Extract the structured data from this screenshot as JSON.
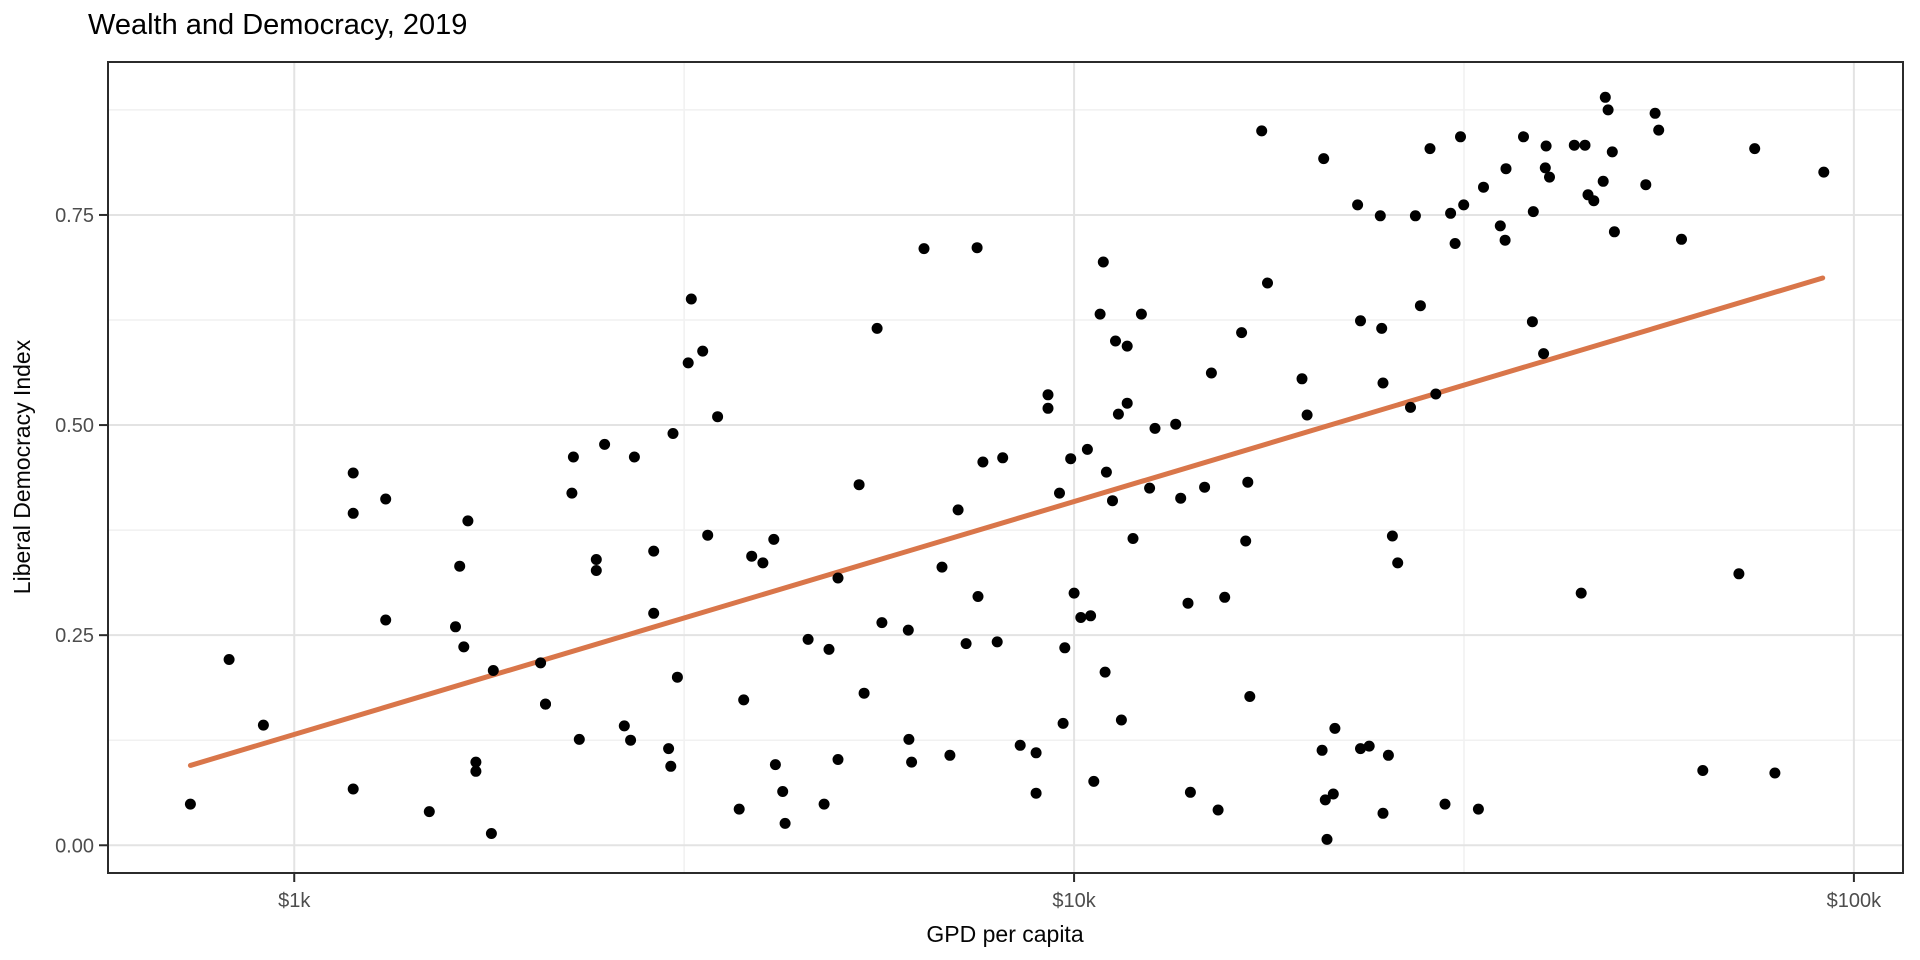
{
  "chart_data": {
    "type": "scatter",
    "title": "Wealth and Democracy, 2019",
    "xlabel": "GPD per capita",
    "ylabel": "Liberal Democracy Index",
    "x_scale": "log10",
    "xlim": [
      577,
      115600
    ],
    "ylim": [
      -0.033,
      0.932
    ],
    "x_breaks": [
      1000,
      10000,
      100000
    ],
    "x_tick_labels": [
      "$1k",
      "$10k",
      "$100k"
    ],
    "x_minor_breaks": [
      3162,
      31623
    ],
    "y_breaks": [
      0,
      0.25,
      0.5,
      0.75
    ],
    "y_tick_labels": [
      "0.00",
      "0.25",
      "0.50",
      "0.75"
    ],
    "y_minor_breaks": [
      0.125,
      0.375,
      0.625,
      0.875
    ],
    "grid": "on",
    "legend_position": "none",
    "point_color": "#000000",
    "trend_color": "#D9764A",
    "grid_major_color": "#e3e3e3",
    "grid_minor_color": "#f1f1f1",
    "panel_border_color": "#2b2b2b",
    "tick_color": "#2b2b2b",
    "trend_line": {
      "x1": 736,
      "y1": 0.095,
      "x2": 91200,
      "y2": 0.675
    },
    "points": [
      [
        48000,
        0.89
      ],
      [
        48400,
        0.875
      ],
      [
        55600,
        0.871
      ],
      [
        56200,
        0.851
      ],
      [
        17400,
        0.85
      ],
      [
        31300,
        0.843
      ],
      [
        37700,
        0.843
      ],
      [
        40300,
        0.832
      ],
      [
        43800,
        0.833
      ],
      [
        45200,
        0.833
      ],
      [
        49000,
        0.825
      ],
      [
        74600,
        0.829
      ],
      [
        28600,
        0.829
      ],
      [
        20900,
        0.817
      ],
      [
        35800,
        0.805
      ],
      [
        40200,
        0.806
      ],
      [
        40700,
        0.795
      ],
      [
        91500,
        0.801
      ],
      [
        33500,
        0.783
      ],
      [
        47700,
        0.79
      ],
      [
        54100,
        0.786
      ],
      [
        45600,
        0.774
      ],
      [
        46400,
        0.767
      ],
      [
        31600,
        0.762
      ],
      [
        23100,
        0.762
      ],
      [
        38800,
        0.754
      ],
      [
        30400,
        0.752
      ],
      [
        24700,
        0.749
      ],
      [
        27400,
        0.749
      ],
      [
        35200,
        0.737
      ],
      [
        35700,
        0.72
      ],
      [
        30800,
        0.716
      ],
      [
        49300,
        0.73
      ],
      [
        60100,
        0.721
      ],
      [
        6420,
        0.71
      ],
      [
        7510,
        0.711
      ],
      [
        10900,
        0.694
      ],
      [
        17700,
        0.669
      ],
      [
        3230,
        0.65
      ],
      [
        10800,
        0.632
      ],
      [
        12200,
        0.632
      ],
      [
        27800,
        0.642
      ],
      [
        23300,
        0.624
      ],
      [
        24800,
        0.615
      ],
      [
        16400,
        0.61
      ],
      [
        5590,
        0.615
      ],
      [
        38700,
        0.623
      ],
      [
        11300,
        0.6
      ],
      [
        11700,
        0.594
      ],
      [
        3340,
        0.588
      ],
      [
        3200,
        0.574
      ],
      [
        15000,
        0.562
      ],
      [
        19600,
        0.555
      ],
      [
        24900,
        0.55
      ],
      [
        40000,
        0.585
      ],
      [
        9260,
        0.536
      ],
      [
        9260,
        0.52
      ],
      [
        11700,
        0.526
      ],
      [
        11400,
        0.513
      ],
      [
        12700,
        0.496
      ],
      [
        13500,
        0.501
      ],
      [
        19900,
        0.512
      ],
      [
        27000,
        0.521
      ],
      [
        29100,
        0.537
      ],
      [
        3490,
        0.51
      ],
      [
        3060,
        0.49
      ],
      [
        2500,
        0.477
      ],
      [
        2280,
        0.462
      ],
      [
        2730,
        0.462
      ],
      [
        2270,
        0.419
      ],
      [
        5300,
        0.429
      ],
      [
        7640,
        0.456
      ],
      [
        8100,
        0.461
      ],
      [
        7100,
        0.399
      ],
      [
        9900,
        0.46
      ],
      [
        10400,
        0.471
      ],
      [
        11000,
        0.444
      ],
      [
        9580,
        0.419
      ],
      [
        12500,
        0.425
      ],
      [
        11200,
        0.41
      ],
      [
        13700,
        0.413
      ],
      [
        14700,
        0.426
      ],
      [
        16700,
        0.432
      ],
      [
        1190,
        0.443
      ],
      [
        1310,
        0.412
      ],
      [
        1190,
        0.395
      ],
      [
        1670,
        0.386
      ],
      [
        1630,
        0.332
      ],
      [
        3390,
        0.369
      ],
      [
        4120,
        0.364
      ],
      [
        3860,
        0.344
      ],
      [
        3990,
        0.336
      ],
      [
        2890,
        0.35
      ],
      [
        2440,
        0.34
      ],
      [
        2440,
        0.327
      ],
      [
        4980,
        0.318
      ],
      [
        6770,
        0.331
      ],
      [
        7530,
        0.296
      ],
      [
        11900,
        0.365
      ],
      [
        16600,
        0.362
      ],
      [
        25600,
        0.368
      ],
      [
        26000,
        0.336
      ],
      [
        10000,
        0.3
      ],
      [
        71200,
        0.323
      ],
      [
        44700,
        0.3
      ],
      [
        14000,
        0.288
      ],
      [
        15600,
        0.295
      ],
      [
        2890,
        0.276
      ],
      [
        1310,
        0.268
      ],
      [
        1610,
        0.26
      ],
      [
        825,
        0.221
      ],
      [
        1650,
        0.236
      ],
      [
        1800,
        0.208
      ],
      [
        2070,
        0.217
      ],
      [
        10200,
        0.271
      ],
      [
        10500,
        0.273
      ],
      [
        9730,
        0.235
      ],
      [
        4560,
        0.245
      ],
      [
        4850,
        0.233
      ],
      [
        5670,
        0.265
      ],
      [
        6130,
        0.256
      ],
      [
        7270,
        0.24
      ],
      [
        7970,
        0.242
      ],
      [
        10960,
        0.206
      ],
      [
        3100,
        0.2
      ],
      [
        3770,
        0.173
      ],
      [
        5380,
        0.181
      ],
      [
        16800,
        0.177
      ],
      [
        2100,
        0.168
      ],
      [
        11500,
        0.149
      ],
      [
        9680,
        0.145
      ],
      [
        913,
        0.143
      ],
      [
        2650,
        0.142
      ],
      [
        2320,
        0.126
      ],
      [
        2700,
        0.125
      ],
      [
        3020,
        0.115
      ],
      [
        8530,
        0.119
      ],
      [
        8940,
        0.11
      ],
      [
        21600,
        0.139
      ],
      [
        20800,
        0.113
      ],
      [
        23300,
        0.115
      ],
      [
        23900,
        0.118
      ],
      [
        25300,
        0.107
      ],
      [
        3040,
        0.094
      ],
      [
        4140,
        0.096
      ],
      [
        4980,
        0.102
      ],
      [
        6140,
        0.126
      ],
      [
        6190,
        0.099
      ],
      [
        6930,
        0.107
      ],
      [
        1710,
        0.099
      ],
      [
        1710,
        0.088
      ],
      [
        10600,
        0.076
      ],
      [
        8940,
        0.062
      ],
      [
        14100,
        0.063
      ],
      [
        4230,
        0.064
      ],
      [
        1190,
        0.067
      ],
      [
        3720,
        0.043
      ],
      [
        4780,
        0.049
      ],
      [
        4260,
        0.026
      ],
      [
        15300,
        0.042
      ],
      [
        21000,
        0.054
      ],
      [
        21500,
        0.061
      ],
      [
        24900,
        0.038
      ],
      [
        21100,
        0.007
      ],
      [
        29900,
        0.049
      ],
      [
        33000,
        0.043
      ],
      [
        64000,
        0.089
      ],
      [
        79200,
        0.086
      ],
      [
        736,
        0.049
      ],
      [
        1490,
        0.04
      ],
      [
        1790,
        0.014
      ],
      [
        2100,
        0.168
      ]
    ]
  }
}
